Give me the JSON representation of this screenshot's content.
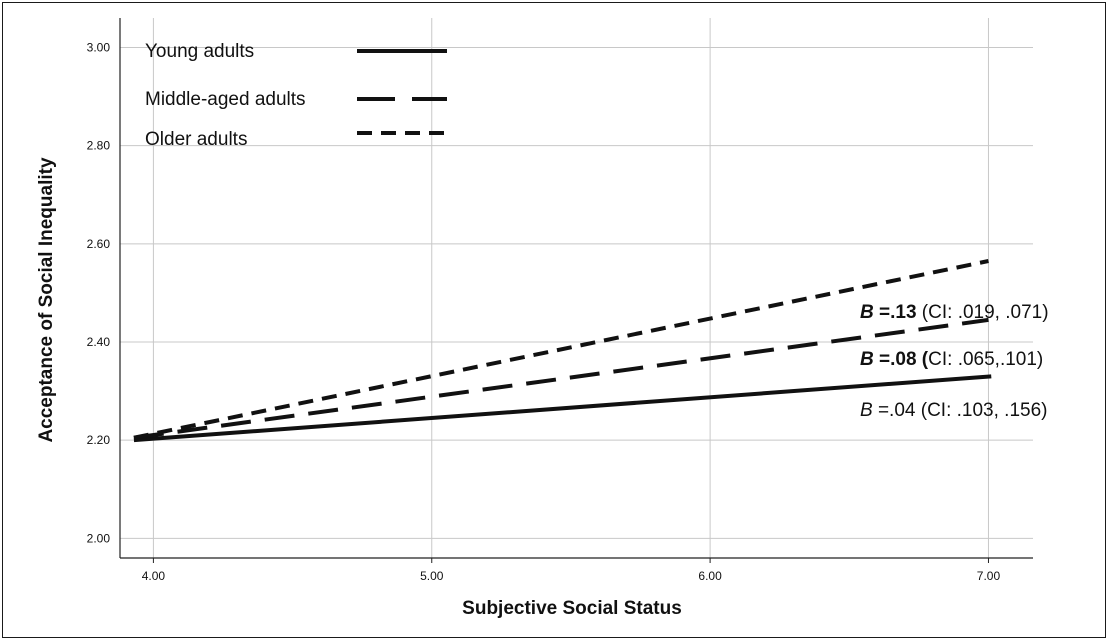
{
  "chart_data": {
    "type": "line",
    "xlabel": "Subjective Social Status",
    "ylabel": "Acceptance of Social Inequality",
    "xlim": [
      3.88,
      7.16
    ],
    "ylim": [
      1.96,
      3.06
    ],
    "x_ticks": [
      "4.00",
      "5.00",
      "6.00",
      "7.00"
    ],
    "x_tick_values": [
      4,
      5,
      6,
      7
    ],
    "y_ticks": [
      "2.00",
      "2.20",
      "2.40",
      "2.60",
      "2.80",
      "3.00"
    ],
    "y_tick_values": [
      2.0,
      2.2,
      2.4,
      2.6,
      2.8,
      3.0
    ],
    "grid": true,
    "legend_position": "top-left",
    "series": [
      {
        "name": "Young adults",
        "style": "solid",
        "x": [
          3.93,
          7.01
        ],
        "y": [
          2.2,
          2.33
        ]
      },
      {
        "name": "Middle-aged adults",
        "style": "long-dash",
        "x": [
          3.93,
          7.0
        ],
        "y": [
          2.205,
          2.445
        ]
      },
      {
        "name": "Older adults",
        "style": "short-dash",
        "x": [
          3.93,
          7.0
        ],
        "y": [
          2.205,
          2.565
        ]
      }
    ],
    "annotations": [
      {
        "b_label": "B",
        "b_value": " =.13",
        "ci": " (CI: .019, .071)",
        "weight": "bold"
      },
      {
        "b_label": "B",
        "b_value": " =.08",
        "ci_open": " (",
        "ci": "CI: .065,.101)",
        "weight": "bold"
      },
      {
        "b_label": "B",
        "b_value": " =.04",
        "ci": " (CI: .103, .156)",
        "weight": "normal"
      }
    ],
    "colors": {
      "line": "#111111",
      "grid": "#c8c8c8",
      "axis": "#222222"
    }
  }
}
